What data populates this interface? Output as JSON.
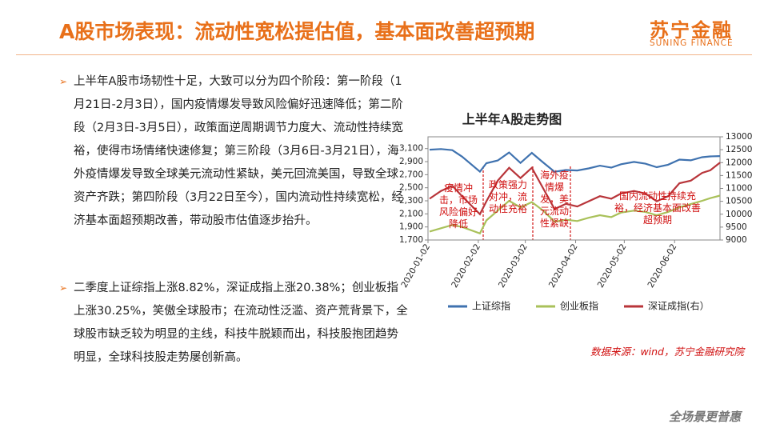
{
  "header": {
    "title": "A股市场表现：流动性宽松提估值，基本面改善超预期",
    "logo_cn": "苏宁金融",
    "logo_en": "SUNING FINANCE"
  },
  "bullets": [
    "上半年A股市场韧性十足，大致可以分为四个阶段：第一阶段（1月21日-2月3日），国内疫情爆发导致风险偏好迅速降低；第二阶段（2月3日-3月5日），政策面逆周期调节力度大、流动性持续宽裕，使得市场情绪快速修复；第三阶段（3月6日-3月21日），海外疫情爆发导致全球美元流动性紧缺，美元回流美国，导致全球资产齐跌；第四阶段（3月22日至今），国内流动性持续宽松，经济基本面超预期改善，带动股市估值逐步抬升。",
    "二季度上证综指上涨8.82%，深证成指上涨20.38%；创业板指上涨30.25%，笑傲全球股市；在流动性泛滥、资产荒背景下，全球股市缺乏较为明显的主线，科技牛脱颖而出，科技股抱团趋势明显，全球科技股走势屡创新高。"
  ],
  "chart_data": {
    "type": "line",
    "title": "上半年A股走势图",
    "x": [
      "2020-01-03",
      "2020-01-10",
      "2020-01-17",
      "2020-01-23",
      "2020-02-03",
      "2020-02-07",
      "2020-02-14",
      "2020-02-21",
      "2020-02-28",
      "2020-03-06",
      "2020-03-13",
      "2020-03-20",
      "2020-03-27",
      "2020-04-03",
      "2020-04-10",
      "2020-04-17",
      "2020-04-24",
      "2020-04-30",
      "2020-05-08",
      "2020-05-15",
      "2020-05-22",
      "2020-05-29",
      "2020-06-05",
      "2020-06-12",
      "2020-06-19",
      "2020-06-24",
      "2020-06-30"
    ],
    "xticks": [
      "2020-01-02",
      "2020-02-02",
      "2020-03-02",
      "2020-04-02",
      "2020-05-02",
      "2020-06-02"
    ],
    "ylim": [
      1700,
      3280
    ],
    "yticks": [
      {
        "value": 1700,
        "label": "1,700"
      },
      {
        "value": 1900,
        "label": "1,900"
      },
      {
        "value": 2100,
        "label": "2,100"
      },
      {
        "value": 2300,
        "label": "2,300"
      },
      {
        "value": 2500,
        "label": "2,500"
      },
      {
        "value": 2700,
        "label": "2,700"
      },
      {
        "value": 2900,
        "label": "2,900"
      },
      {
        "value": 3100,
        "label": "3,100"
      }
    ],
    "y2lim": [
      9000,
      13000
    ],
    "y2ticks": [
      9000,
      9500,
      10000,
      10500,
      11000,
      11500,
      12000,
      12500,
      13000
    ],
    "series": [
      {
        "name": "上证综指",
        "color": "#3f72af",
        "values": [
          3083,
          3092,
          3075,
          2976,
          2746,
          2876,
          2917,
          3040,
          2880,
          3034,
          2887,
          2745,
          2772,
          2764,
          2796,
          2838,
          2808,
          2860,
          2895,
          2868,
          2814,
          2852,
          2931,
          2920,
          2968,
          2980,
          2985
        ]
      },
      {
        "name": "创业板指",
        "color": "#a9c15a",
        "values": [
          1830,
          1880,
          1930,
          1900,
          1800,
          2000,
          2150,
          2300,
          2200,
          2280,
          2150,
          1980,
          2010,
          1990,
          2040,
          2080,
          2050,
          2120,
          2150,
          2130,
          2080,
          2130,
          2200,
          2250,
          2300,
          2340,
          2380
        ]
      },
      {
        "name": "深证成指(右）",
        "color": "#b8353a",
        "axis": "y2",
        "values": [
          10600,
          10900,
          11100,
          10700,
          10000,
          10500,
          11300,
          11800,
          11400,
          11800,
          11000,
          10200,
          10400,
          10300,
          10500,
          10700,
          10600,
          10800,
          10900,
          10800,
          10500,
          10700,
          11200,
          11300,
          11600,
          11700,
          12000
        ]
      }
    ],
    "annotations": [
      "疫情冲击，市场风险偏好降低",
      "政策强力对冲，流动性充裕",
      "海外疫情爆发，美元流动性紧缺",
      "国内流动性持续充裕，经济基本面改善超预期"
    ],
    "source": "数据来源：wind，苏宁金融研究院"
  },
  "footer": {
    "slogan": "全场景更普惠"
  }
}
